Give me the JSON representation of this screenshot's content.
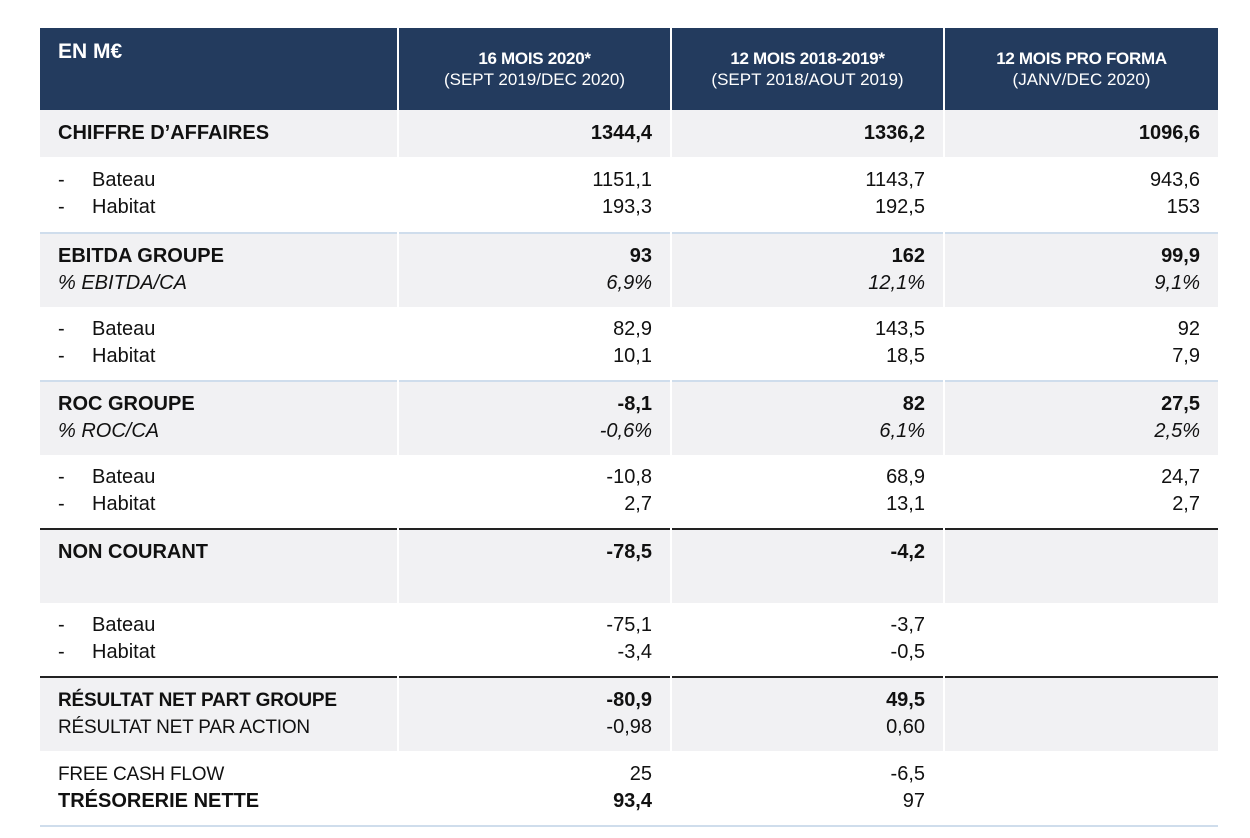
{
  "header": {
    "unit": "EN M€",
    "columns": [
      {
        "title": "16 MOIS 2020*",
        "subtitle": "(SEPT 2019/DEC 2020)"
      },
      {
        "title": "12 MOIS 2018-2019*",
        "subtitle": "(SEPT 2018/AOUT 2019)"
      },
      {
        "title": "12 MOIS PRO FORMA",
        "subtitle": "(JANV/DEC 2020)"
      }
    ]
  },
  "rows": {
    "ca": {
      "label": "CHIFFRE D’AFFAIRES",
      "values": [
        "1344,4",
        "1336,2",
        "1096,6"
      ]
    },
    "ca_split": {
      "labels": [
        "Bateau",
        "Habitat"
      ],
      "v0": [
        "1151,1",
        "193,3"
      ],
      "v1": [
        "1143,7",
        "192,5"
      ],
      "v2": [
        "943,6",
        "153"
      ]
    },
    "ebitda": {
      "label": "EBITDA GROUPE",
      "sub": "% EBITDA/CA",
      "values": [
        "93",
        "162",
        "99,9"
      ],
      "pct": [
        "6,9%",
        "12,1%",
        "9,1%"
      ]
    },
    "ebitda_split": {
      "labels": [
        "Bateau",
        "Habitat"
      ],
      "v0": [
        "82,9",
        "10,1"
      ],
      "v1": [
        "143,5",
        "18,5"
      ],
      "v2": [
        "92",
        "7,9"
      ]
    },
    "roc": {
      "label": "ROC GROUPE",
      "sub": "% ROC/CA",
      "values": [
        "-8,1",
        "82",
        "27,5"
      ],
      "pct": [
        "-0,6%",
        "6,1%",
        "2,5%"
      ]
    },
    "roc_split": {
      "labels": [
        "Bateau",
        "Habitat"
      ],
      "v0": [
        "-10,8",
        "2,7"
      ],
      "v1": [
        "68,9",
        "13,1"
      ],
      "v2": [
        "24,7",
        "2,7"
      ]
    },
    "nc": {
      "label": "NON COURANT",
      "values": [
        "-78,5",
        "-4,2"
      ]
    },
    "nc_split": {
      "labels": [
        "Bateau",
        "Habitat"
      ],
      "v0": [
        "-75,1",
        "-3,4"
      ],
      "v1": [
        "-3,7",
        "-0,5"
      ]
    },
    "rn": {
      "label": "RÉSULTAT NET PART GROUPE",
      "sub": "RÉSULTAT NET PAR ACTION",
      "values": [
        "-80,9",
        "49,5"
      ],
      "per_share": [
        "-0,98",
        "0,60"
      ]
    },
    "cash": {
      "label": "FREE CASH FLOW",
      "sub": "TRÉSORERIE NETTE",
      "fcf": [
        "25",
        "-6,5"
      ],
      "treso": [
        "93,4",
        "97"
      ]
    }
  }
}
